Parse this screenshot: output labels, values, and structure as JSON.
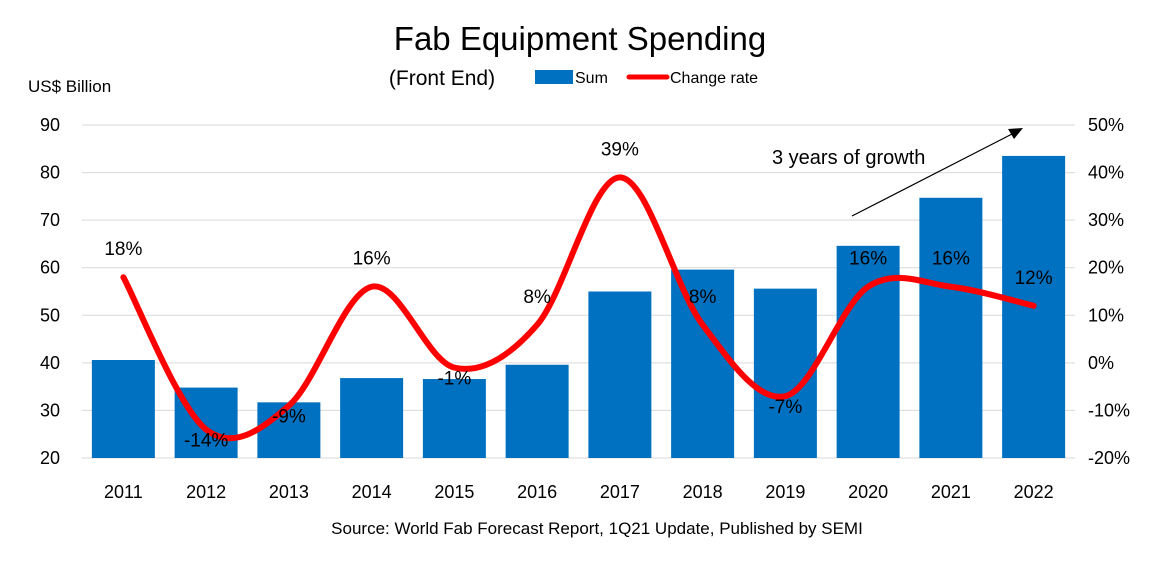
{
  "chart_data": {
    "type": "bar",
    "title": "Fab Equipment Spending",
    "subtitle": "(Front End)",
    "ylabel": "US$ Billion",
    "categories": [
      "2011",
      "2012",
      "2013",
      "2014",
      "2015",
      "2016",
      "2017",
      "2018",
      "2019",
      "2020",
      "2021",
      "2022"
    ],
    "ylim": [
      20,
      90
    ],
    "yticks": [
      "20",
      "30",
      "40",
      "50",
      "60",
      "70",
      "80",
      "90"
    ],
    "y2lim": [
      -20,
      50
    ],
    "y2ticks": [
      "-20%",
      "-10%",
      "0%",
      "10%",
      "20%",
      "30%",
      "40%",
      "50%"
    ],
    "legend_position": "top",
    "grid": true,
    "series": [
      {
        "name": "Sum",
        "type": "bar",
        "axis": "left",
        "color": "#0070C0",
        "values": [
          40.6,
          34.8,
          31.7,
          36.8,
          36.6,
          39.6,
          55.0,
          59.6,
          55.6,
          64.6,
          74.7,
          83.5
        ]
      },
      {
        "name": "Change rate",
        "type": "line",
        "axis": "right",
        "color": "#FF0000",
        "values": [
          18,
          -14,
          -9,
          16,
          -1,
          8,
          39,
          8,
          -7,
          16,
          16,
          12
        ],
        "labels": [
          "18%",
          "-14%",
          "-9%",
          "16%",
          "-1%",
          "8%",
          "39%",
          "8%",
          "-7%",
          "16%",
          "16%",
          "12%"
        ]
      }
    ],
    "annotation": "3 years of growth",
    "source": "Source: World Fab Forecast Report, 1Q21 Update, Published by SEMI"
  }
}
